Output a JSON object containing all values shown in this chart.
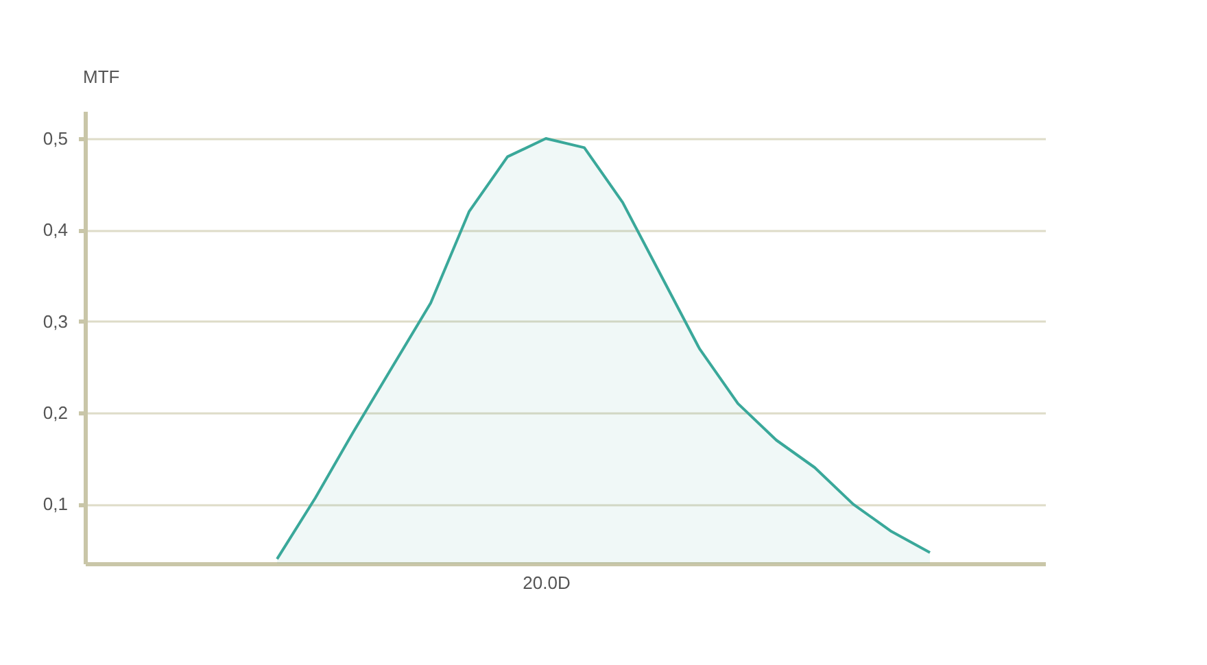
{
  "chart_data": {
    "type": "area",
    "ylabel": "MTF",
    "categories": [
      null,
      null,
      null,
      null,
      null,
      null,
      null,
      null,
      null,
      null,
      null,
      null,
      "20.0D",
      null,
      null,
      null,
      null,
      null,
      null,
      null,
      null,
      null,
      null,
      null,
      null,
      null
    ],
    "series": [
      {
        "color": "#3aa89a",
        "values": [
          null,
          null,
          null,
          null,
          null,
          0.04,
          0.107,
          0.18,
          0.25,
          0.32,
          0.42,
          0.48,
          0.5,
          0.49,
          0.43,
          0.35,
          0.27,
          0.21,
          0.17,
          0.14,
          0.1,
          0.07,
          0.047,
          null,
          null,
          null
        ]
      }
    ],
    "ylim": [
      0.035,
      0.53
    ],
    "yticks": [
      {
        "value": 0.1,
        "label": "0,1"
      },
      {
        "value": 0.2,
        "label": "0,2"
      },
      {
        "value": 0.3,
        "label": "0,3"
      },
      {
        "value": 0.4,
        "label": "0,4"
      },
      {
        "value": 0.5,
        "label": "0,5"
      }
    ],
    "grid": "y"
  }
}
